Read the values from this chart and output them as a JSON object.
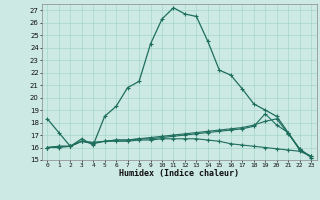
{
  "title": "",
  "xlabel": "Humidex (Indice chaleur)",
  "xlim": [
    -0.5,
    23.5
  ],
  "ylim": [
    15,
    27.5
  ],
  "yticks": [
    15,
    16,
    17,
    18,
    19,
    20,
    21,
    22,
    23,
    24,
    25,
    26,
    27
  ],
  "xticks": [
    0,
    1,
    2,
    3,
    4,
    5,
    6,
    7,
    8,
    9,
    10,
    11,
    12,
    13,
    14,
    15,
    16,
    17,
    18,
    19,
    20,
    21,
    22,
    23
  ],
  "bg_color": "#cce9e3",
  "grid_color": "#a8d5cc",
  "line_color": "#1e6e5e",
  "line1_y": [
    18.3,
    17.2,
    16.1,
    16.7,
    16.2,
    18.5,
    19.3,
    20.8,
    21.3,
    24.3,
    26.3,
    27.2,
    26.7,
    26.5,
    24.5,
    22.2,
    21.8,
    20.7,
    19.5,
    19.0,
    18.5,
    17.2,
    15.8,
    15.3
  ],
  "line2_y": [
    16.0,
    16.1,
    16.1,
    16.5,
    16.3,
    16.5,
    16.6,
    16.6,
    16.7,
    16.7,
    16.8,
    16.9,
    17.0,
    17.1,
    17.2,
    17.3,
    17.4,
    17.5,
    17.7,
    18.7,
    17.8,
    17.2,
    15.9,
    15.2
  ],
  "line3_y": [
    16.0,
    16.1,
    16.1,
    16.5,
    16.4,
    16.5,
    16.6,
    16.6,
    16.7,
    16.8,
    16.9,
    17.0,
    17.1,
    17.2,
    17.3,
    17.4,
    17.5,
    17.6,
    17.8,
    18.1,
    18.3,
    17.1,
    15.9,
    15.2
  ],
  "line4_y": [
    16.0,
    16.0,
    16.1,
    16.5,
    16.4,
    16.5,
    16.5,
    16.5,
    16.6,
    16.6,
    16.7,
    16.7,
    16.7,
    16.7,
    16.6,
    16.5,
    16.3,
    16.2,
    16.1,
    16.0,
    15.9,
    15.8,
    15.7,
    15.3
  ]
}
